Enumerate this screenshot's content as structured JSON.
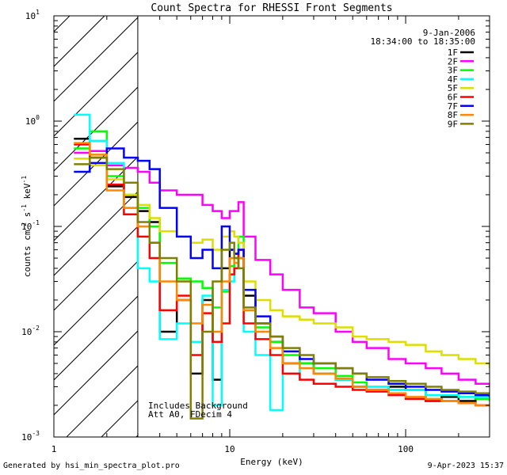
{
  "chart_data": {
    "type": "line",
    "title": "Count Spectra for RHESSI Front Segments",
    "xlabel": "Energy (keV)",
    "ylabel_parts": {
      "base": "counts cm",
      "exp1": "-2",
      "mid1": " s",
      "exp2": "-1",
      "mid2": " keV",
      "exp3": "-1"
    },
    "x_scale": "log",
    "y_scale": "log",
    "xlim": [
      1,
      300
    ],
    "ylim": [
      0.001,
      10
    ],
    "x_ticks": [
      {
        "value": 1,
        "label": "1"
      },
      {
        "value": 10,
        "label": "10"
      },
      {
        "value": 100,
        "label": "100"
      }
    ],
    "y_ticks": [
      {
        "value": 0.001,
        "base": "10",
        "exp": "-3"
      },
      {
        "value": 0.01,
        "base": "10",
        "exp": "-2"
      },
      {
        "value": 0.1,
        "base": "10",
        "exp": "-1"
      },
      {
        "value": 1,
        "base": "10",
        "exp": "0"
      },
      {
        "value": 10,
        "base": "10",
        "exp": "1"
      }
    ],
    "hatched_region": [
      1,
      3
    ],
    "info": {
      "date": "9-Jan-2006",
      "time_range": "18:34:00 to 18:35:00"
    },
    "annotations": [
      "Includes Background",
      "Att A0, FDecim 4"
    ],
    "series": [
      {
        "name": "1F",
        "color": "#000000",
        "x": [
          1.3,
          1.6,
          2.0,
          2.5,
          3.0,
          3.5,
          4.0,
          5.0,
          6.0,
          7.0,
          8.0,
          9.0,
          10.0,
          10.6,
          11.2,
          12.0,
          14.0,
          17.0,
          20.0,
          25.0,
          30.0,
          40.0,
          50.0,
          60.0,
          80.0,
          100.0,
          130.0,
          160.0,
          200.0,
          250.0,
          300.0
        ],
        "y": [
          0.68,
          0.45,
          0.24,
          0.19,
          0.14,
          0.11,
          0.01,
          0.02,
          0.004,
          0.02,
          0.0035,
          0.04,
          0.06,
          0.055,
          0.05,
          0.022,
          0.012,
          0.008,
          0.005,
          0.005,
          0.004,
          0.0035,
          0.003,
          0.0028,
          0.003,
          0.0028,
          0.0022,
          0.0024,
          0.0022,
          0.0025,
          0.0022
        ]
      },
      {
        "name": "2F",
        "color": "#ff00ff",
        "x": [
          1.3,
          1.6,
          2.0,
          2.5,
          3.0,
          3.5,
          4.0,
          5.0,
          6.0,
          7.0,
          8.0,
          9.0,
          10.0,
          10.6,
          11.2,
          12.0,
          14.0,
          17.0,
          20.0,
          25.0,
          30.0,
          40.0,
          50.0,
          60.0,
          80.0,
          100.0,
          130.0,
          160.0,
          200.0,
          250.0,
          300.0
        ],
        "y": [
          0.5,
          0.52,
          0.38,
          0.36,
          0.33,
          0.26,
          0.22,
          0.2,
          0.2,
          0.16,
          0.14,
          0.12,
          0.14,
          0.14,
          0.17,
          0.08,
          0.048,
          0.035,
          0.025,
          0.017,
          0.015,
          0.01,
          0.008,
          0.007,
          0.0055,
          0.005,
          0.0045,
          0.004,
          0.0035,
          0.0032,
          0.003
        ]
      },
      {
        "name": "3F",
        "color": "#00ff00",
        "x": [
          1.3,
          1.6,
          2.0,
          2.5,
          3.0,
          3.5,
          4.0,
          5.0,
          6.0,
          7.0,
          8.0,
          9.0,
          10.0,
          10.6,
          11.2,
          12.0,
          14.0,
          17.0,
          20.0,
          25.0,
          30.0,
          40.0,
          50.0,
          60.0,
          80.0,
          100.0,
          130.0,
          160.0,
          200.0,
          250.0,
          300.0
        ],
        "y": [
          0.55,
          0.8,
          0.3,
          0.2,
          0.15,
          0.1,
          0.045,
          0.032,
          0.03,
          0.026,
          0.017,
          0.024,
          0.042,
          0.05,
          0.08,
          0.016,
          0.011,
          0.008,
          0.006,
          0.005,
          0.0045,
          0.0038,
          0.0033,
          0.003,
          0.0028,
          0.0028,
          0.0025,
          0.0025,
          0.0024,
          0.0023,
          0.0022
        ]
      },
      {
        "name": "4F",
        "color": "#00ffff",
        "x": [
          1.3,
          1.6,
          2.0,
          2.5,
          3.0,
          3.5,
          4.0,
          5.0,
          6.0,
          7.0,
          8.0,
          9.0,
          10.0,
          10.6,
          11.2,
          12.0,
          14.0,
          17.0,
          20.0,
          25.0,
          30.0,
          40.0,
          50.0,
          60.0,
          80.0,
          100.0,
          130.0,
          160.0,
          200.0,
          250.0,
          300.0
        ],
        "y": [
          1.15,
          0.65,
          0.4,
          0.15,
          0.04,
          0.03,
          0.0085,
          0.012,
          0.008,
          0.022,
          0.002,
          0.025,
          0.03,
          0.04,
          0.05,
          0.01,
          0.006,
          0.0018,
          0.004,
          0.0045,
          0.004,
          0.0035,
          0.003,
          0.003,
          0.0028,
          0.0028,
          0.0025,
          0.0025,
          0.0024,
          0.0024,
          0.0023
        ]
      },
      {
        "name": "5F",
        "color": "#dddd00",
        "x": [
          1.3,
          1.6,
          2.0,
          2.5,
          3.0,
          3.5,
          4.0,
          5.0,
          6.0,
          7.0,
          8.0,
          9.0,
          10.0,
          10.6,
          11.2,
          12.0,
          14.0,
          17.0,
          20.0,
          25.0,
          30.0,
          40.0,
          50.0,
          60.0,
          80.0,
          100.0,
          130.0,
          160.0,
          200.0,
          250.0,
          300.0
        ],
        "y": [
          0.44,
          0.38,
          0.28,
          0.2,
          0.16,
          0.12,
          0.09,
          0.08,
          0.07,
          0.075,
          0.06,
          0.08,
          0.09,
          0.08,
          0.07,
          0.03,
          0.02,
          0.016,
          0.014,
          0.013,
          0.012,
          0.011,
          0.009,
          0.0085,
          0.008,
          0.0075,
          0.0065,
          0.006,
          0.0055,
          0.005,
          0.0045
        ]
      },
      {
        "name": "6F",
        "color": "#ff0000",
        "x": [
          1.3,
          1.6,
          2.0,
          2.5,
          3.0,
          3.5,
          4.0,
          5.0,
          6.0,
          7.0,
          8.0,
          9.0,
          10.0,
          10.6,
          11.2,
          12.0,
          14.0,
          17.0,
          20.0,
          25.0,
          30.0,
          40.0,
          50.0,
          60.0,
          80.0,
          100.0,
          130.0,
          160.0,
          200.0,
          250.0,
          300.0
        ],
        "y": [
          0.6,
          0.45,
          0.25,
          0.13,
          0.08,
          0.05,
          0.016,
          0.022,
          0.006,
          0.015,
          0.008,
          0.012,
          0.035,
          0.04,
          0.06,
          0.012,
          0.0085,
          0.006,
          0.004,
          0.0035,
          0.0032,
          0.003,
          0.0028,
          0.0027,
          0.0025,
          0.0023,
          0.0022,
          0.0022,
          0.0021,
          0.002,
          0.002
        ]
      },
      {
        "name": "7F",
        "color": "#0000ff",
        "x": [
          1.3,
          1.6,
          2.0,
          2.5,
          3.0,
          3.5,
          4.0,
          5.0,
          6.0,
          7.0,
          8.0,
          9.0,
          10.0,
          10.6,
          11.2,
          12.0,
          14.0,
          17.0,
          20.0,
          25.0,
          30.0,
          40.0,
          50.0,
          60.0,
          80.0,
          100.0,
          130.0,
          160.0,
          200.0,
          250.0,
          300.0
        ],
        "y": [
          0.33,
          0.4,
          0.55,
          0.45,
          0.42,
          0.35,
          0.15,
          0.08,
          0.05,
          0.06,
          0.04,
          0.1,
          0.06,
          0.055,
          0.06,
          0.025,
          0.014,
          0.009,
          0.0065,
          0.0055,
          0.005,
          0.0045,
          0.004,
          0.0035,
          0.0032,
          0.003,
          0.0028,
          0.0027,
          0.0026,
          0.0025,
          0.0024
        ]
      },
      {
        "name": "8F",
        "color": "#ff8800",
        "x": [
          1.3,
          1.6,
          2.0,
          2.5,
          3.0,
          3.5,
          4.0,
          5.0,
          6.0,
          7.0,
          8.0,
          9.0,
          10.0,
          10.6,
          11.2,
          12.0,
          14.0,
          17.0,
          20.0,
          25.0,
          30.0,
          40.0,
          50.0,
          60.0,
          80.0,
          100.0,
          130.0,
          160.0,
          200.0,
          250.0,
          300.0
        ],
        "y": [
          0.62,
          0.48,
          0.22,
          0.15,
          0.1,
          0.07,
          0.03,
          0.02,
          0.012,
          0.018,
          0.01,
          0.03,
          0.05,
          0.045,
          0.05,
          0.016,
          0.01,
          0.007,
          0.005,
          0.0045,
          0.004,
          0.0036,
          0.003,
          0.0028,
          0.0026,
          0.0024,
          0.0023,
          0.0022,
          0.0021,
          0.002,
          0.002
        ]
      },
      {
        "name": "9F",
        "color": "#808000",
        "x": [
          1.3,
          1.6,
          2.0,
          2.5,
          3.0,
          3.5,
          4.0,
          5.0,
          6.0,
          7.0,
          8.0,
          9.0,
          10.0,
          10.6,
          11.2,
          12.0,
          14.0,
          17.0,
          20.0,
          25.0,
          30.0,
          40.0,
          50.0,
          60.0,
          80.0,
          100.0,
          130.0,
          160.0,
          200.0,
          250.0,
          300.0
        ],
        "y": [
          0.39,
          0.45,
          0.35,
          0.26,
          0.11,
          0.07,
          0.05,
          0.03,
          0.0015,
          0.01,
          0.03,
          0.06,
          0.07,
          0.05,
          0.04,
          0.017,
          0.012,
          0.009,
          0.007,
          0.006,
          0.005,
          0.0045,
          0.004,
          0.0037,
          0.0034,
          0.0032,
          0.003,
          0.0028,
          0.0027,
          0.0026,
          0.0025
        ]
      }
    ]
  },
  "footer": {
    "left": "Generated by hsi_min_spectra_plot.pro",
    "right": "9-Apr-2023 15:37"
  }
}
